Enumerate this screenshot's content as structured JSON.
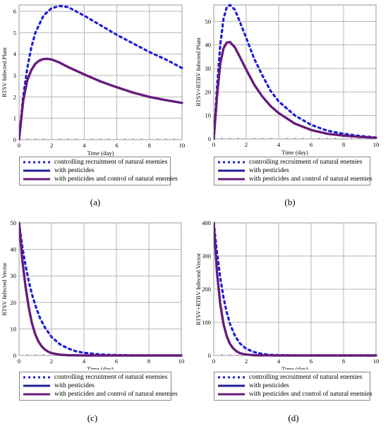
{
  "legend": [
    {
      "label": "controlling recruitment of natural enemies",
      "color": "#1f1fd6",
      "style": "dotted"
    },
    {
      "label": "with pesticides",
      "color": "#1f1f9a",
      "style": "solid"
    },
    {
      "label": "with pesticides and control of natural enemies",
      "color": "#6a1a7a",
      "style": "solid"
    }
  ],
  "chart_data": [
    {
      "type": "line",
      "caption": "(a)",
      "xlabel": "Time (day)",
      "ylabel": "RTSV Infected Plant",
      "xlim": [
        0,
        10
      ],
      "ylim": [
        0,
        6.3
      ],
      "xticks": [
        0,
        2,
        4,
        6,
        8,
        10
      ],
      "yticks": [
        0,
        1,
        2,
        3,
        4,
        5,
        6
      ],
      "grid": true,
      "legend_position": "below",
      "series": [
        {
          "name": "controlling recruitment of natural enemies",
          "x": [
            0,
            0.25,
            0.5,
            0.75,
            1,
            1.5,
            2,
            2.5,
            3,
            3.5,
            4,
            5,
            6,
            7,
            8,
            9,
            10
          ],
          "values": [
            0,
            2.0,
            3.3,
            4.3,
            5.0,
            5.8,
            6.15,
            6.25,
            6.2,
            6.0,
            5.8,
            5.35,
            4.9,
            4.5,
            4.1,
            3.75,
            3.35
          ]
        },
        {
          "name": "with pesticides",
          "x": [
            0,
            0.25,
            0.5,
            0.75,
            1,
            1.25,
            1.5,
            1.75,
            2,
            2.5,
            3,
            4,
            5,
            6,
            7,
            8,
            9,
            10
          ],
          "values": [
            0,
            1.8,
            2.75,
            3.25,
            3.55,
            3.7,
            3.77,
            3.78,
            3.75,
            3.6,
            3.4,
            3.05,
            2.72,
            2.45,
            2.2,
            2.0,
            1.85,
            1.72
          ]
        },
        {
          "name": "with pesticides and control of natural enemies",
          "x": [
            0,
            0.25,
            0.5,
            0.75,
            1,
            1.25,
            1.5,
            1.75,
            2,
            2.5,
            3,
            4,
            5,
            6,
            7,
            8,
            9,
            10
          ],
          "values": [
            0,
            1.8,
            2.75,
            3.25,
            3.55,
            3.7,
            3.77,
            3.78,
            3.75,
            3.6,
            3.4,
            3.05,
            2.72,
            2.45,
            2.2,
            2.0,
            1.85,
            1.72
          ]
        }
      ]
    },
    {
      "type": "line",
      "caption": "(b)",
      "xlabel": "Time (day)",
      "ylabel": "RTSV+RTBV Infected Plant",
      "xlim": [
        0,
        10
      ],
      "ylim": [
        0,
        57
      ],
      "xticks": [
        0,
        2,
        4,
        6,
        8,
        10
      ],
      "yticks": [
        0,
        10,
        20,
        30,
        40,
        50
      ],
      "grid": true,
      "legend_position": "below",
      "series": [
        {
          "name": "controlling recruitment of natural enemies",
          "x": [
            0,
            0.2,
            0.4,
            0.6,
            0.8,
            1,
            1.3,
            1.6,
            2,
            2.5,
            3,
            3.5,
            4,
            5,
            6,
            7,
            8,
            9,
            10
          ],
          "values": [
            0,
            22,
            40,
            51,
            56,
            57,
            55,
            50,
            43,
            34,
            27,
            20.5,
            16,
            10,
            6,
            3.5,
            2.2,
            1.3,
            0.6
          ]
        },
        {
          "name": "with pesticides",
          "x": [
            0,
            0.2,
            0.4,
            0.6,
            0.8,
            1,
            1.3,
            1.6,
            2,
            2.5,
            3,
            3.5,
            4,
            5,
            6,
            7,
            8,
            9,
            10
          ],
          "values": [
            0,
            18,
            32,
            38.5,
            41,
            41.2,
            39,
            35,
            29.5,
            23,
            18,
            14,
            11,
            6.5,
            3.8,
            2.2,
            1.4,
            0.9,
            0.5
          ]
        },
        {
          "name": "with pesticides and control of natural enemies",
          "x": [
            0,
            0.2,
            0.4,
            0.6,
            0.8,
            1,
            1.3,
            1.6,
            2,
            2.5,
            3,
            3.5,
            4,
            5,
            6,
            7,
            8,
            9,
            10
          ],
          "values": [
            0,
            18,
            32,
            38.5,
            41,
            41.2,
            39,
            35,
            29.5,
            23,
            18,
            14,
            11,
            6.5,
            3.8,
            2.2,
            1.4,
            0.9,
            0.5
          ]
        }
      ]
    },
    {
      "type": "line",
      "caption": "(c)",
      "xlabel": "Time (day)",
      "ylabel": "RTSV Infected Vector",
      "xlim": [
        0,
        10
      ],
      "ylim": [
        0,
        50
      ],
      "xticks": [
        0,
        2,
        4,
        6,
        8,
        10
      ],
      "yticks": [
        0,
        10,
        20,
        30,
        40,
        50
      ],
      "grid": true,
      "legend_position": "below",
      "series": [
        {
          "name": "controlling recruitment of natural enemies",
          "x": [
            0,
            0.2,
            0.4,
            0.6,
            0.8,
            1,
            1.3,
            1.6,
            2,
            2.5,
            3,
            3.5,
            4,
            5,
            6,
            7,
            8,
            9,
            10
          ],
          "values": [
            50,
            41,
            34,
            28,
            23,
            19,
            14,
            10.5,
            7,
            4.3,
            2.7,
            1.6,
            1.0,
            0.4,
            0.15,
            0.06,
            0.02,
            0.01,
            0
          ]
        },
        {
          "name": "with pesticides",
          "x": [
            0,
            0.2,
            0.4,
            0.6,
            0.8,
            1,
            1.2,
            1.4,
            1.6,
            1.8,
            2,
            2.5,
            3,
            3.5,
            4,
            5,
            6,
            8,
            10
          ],
          "values": [
            50,
            36,
            26,
            18,
            12,
            8,
            5.2,
            3.4,
            2.2,
            1.4,
            0.9,
            0.3,
            0.1,
            0.04,
            0.01,
            0,
            0,
            0,
            0
          ]
        },
        {
          "name": "with pesticides and control of natural enemies",
          "x": [
            0,
            0.2,
            0.4,
            0.6,
            0.8,
            1,
            1.2,
            1.4,
            1.6,
            1.8,
            2,
            2.5,
            3,
            3.5,
            4,
            5,
            6,
            8,
            10
          ],
          "values": [
            50,
            36,
            26,
            18,
            12,
            8,
            5.2,
            3.4,
            2.2,
            1.4,
            0.9,
            0.3,
            0.1,
            0.04,
            0.01,
            0,
            0,
            0,
            0
          ]
        }
      ]
    },
    {
      "type": "line",
      "caption": "(d)",
      "xlabel": "Time (day)",
      "ylabel": "RTSV+RTBV Infected Vector",
      "xlim": [
        0,
        10
      ],
      "ylim": [
        0,
        400
      ],
      "xticks": [
        0,
        2,
        4,
        6,
        8,
        10
      ],
      "yticks": [
        0,
        100,
        200,
        300,
        400
      ],
      "grid": true,
      "legend_position": "below",
      "series": [
        {
          "name": "controlling recruitment of natural enemies",
          "x": [
            0,
            0.2,
            0.4,
            0.6,
            0.8,
            1,
            1.3,
            1.6,
            2,
            2.5,
            3,
            3.5,
            4,
            5,
            6,
            8,
            10
          ],
          "values": [
            400,
            310,
            235,
            175,
            130,
            95,
            60,
            37,
            20,
            10,
            4.5,
            2,
            1,
            0.2,
            0.05,
            0,
            0
          ]
        },
        {
          "name": "with pesticides",
          "x": [
            0,
            0.2,
            0.4,
            0.6,
            0.8,
            1,
            1.2,
            1.4,
            1.6,
            1.8,
            2,
            2.5,
            3,
            4,
            6,
            8,
            10
          ],
          "values": [
            400,
            250,
            155,
            95,
            58,
            35,
            21,
            12.5,
            7.5,
            4.5,
            2.7,
            0.8,
            0.25,
            0.02,
            0,
            0,
            0
          ]
        },
        {
          "name": "with pesticides and control of natural enemies",
          "x": [
            0,
            0.2,
            0.4,
            0.6,
            0.8,
            1,
            1.2,
            1.4,
            1.6,
            1.8,
            2,
            2.5,
            3,
            4,
            6,
            8,
            10
          ],
          "values": [
            400,
            250,
            155,
            95,
            58,
            35,
            21,
            12.5,
            7.5,
            4.5,
            2.7,
            0.8,
            0.25,
            0.02,
            0,
            0,
            0
          ]
        }
      ]
    }
  ]
}
